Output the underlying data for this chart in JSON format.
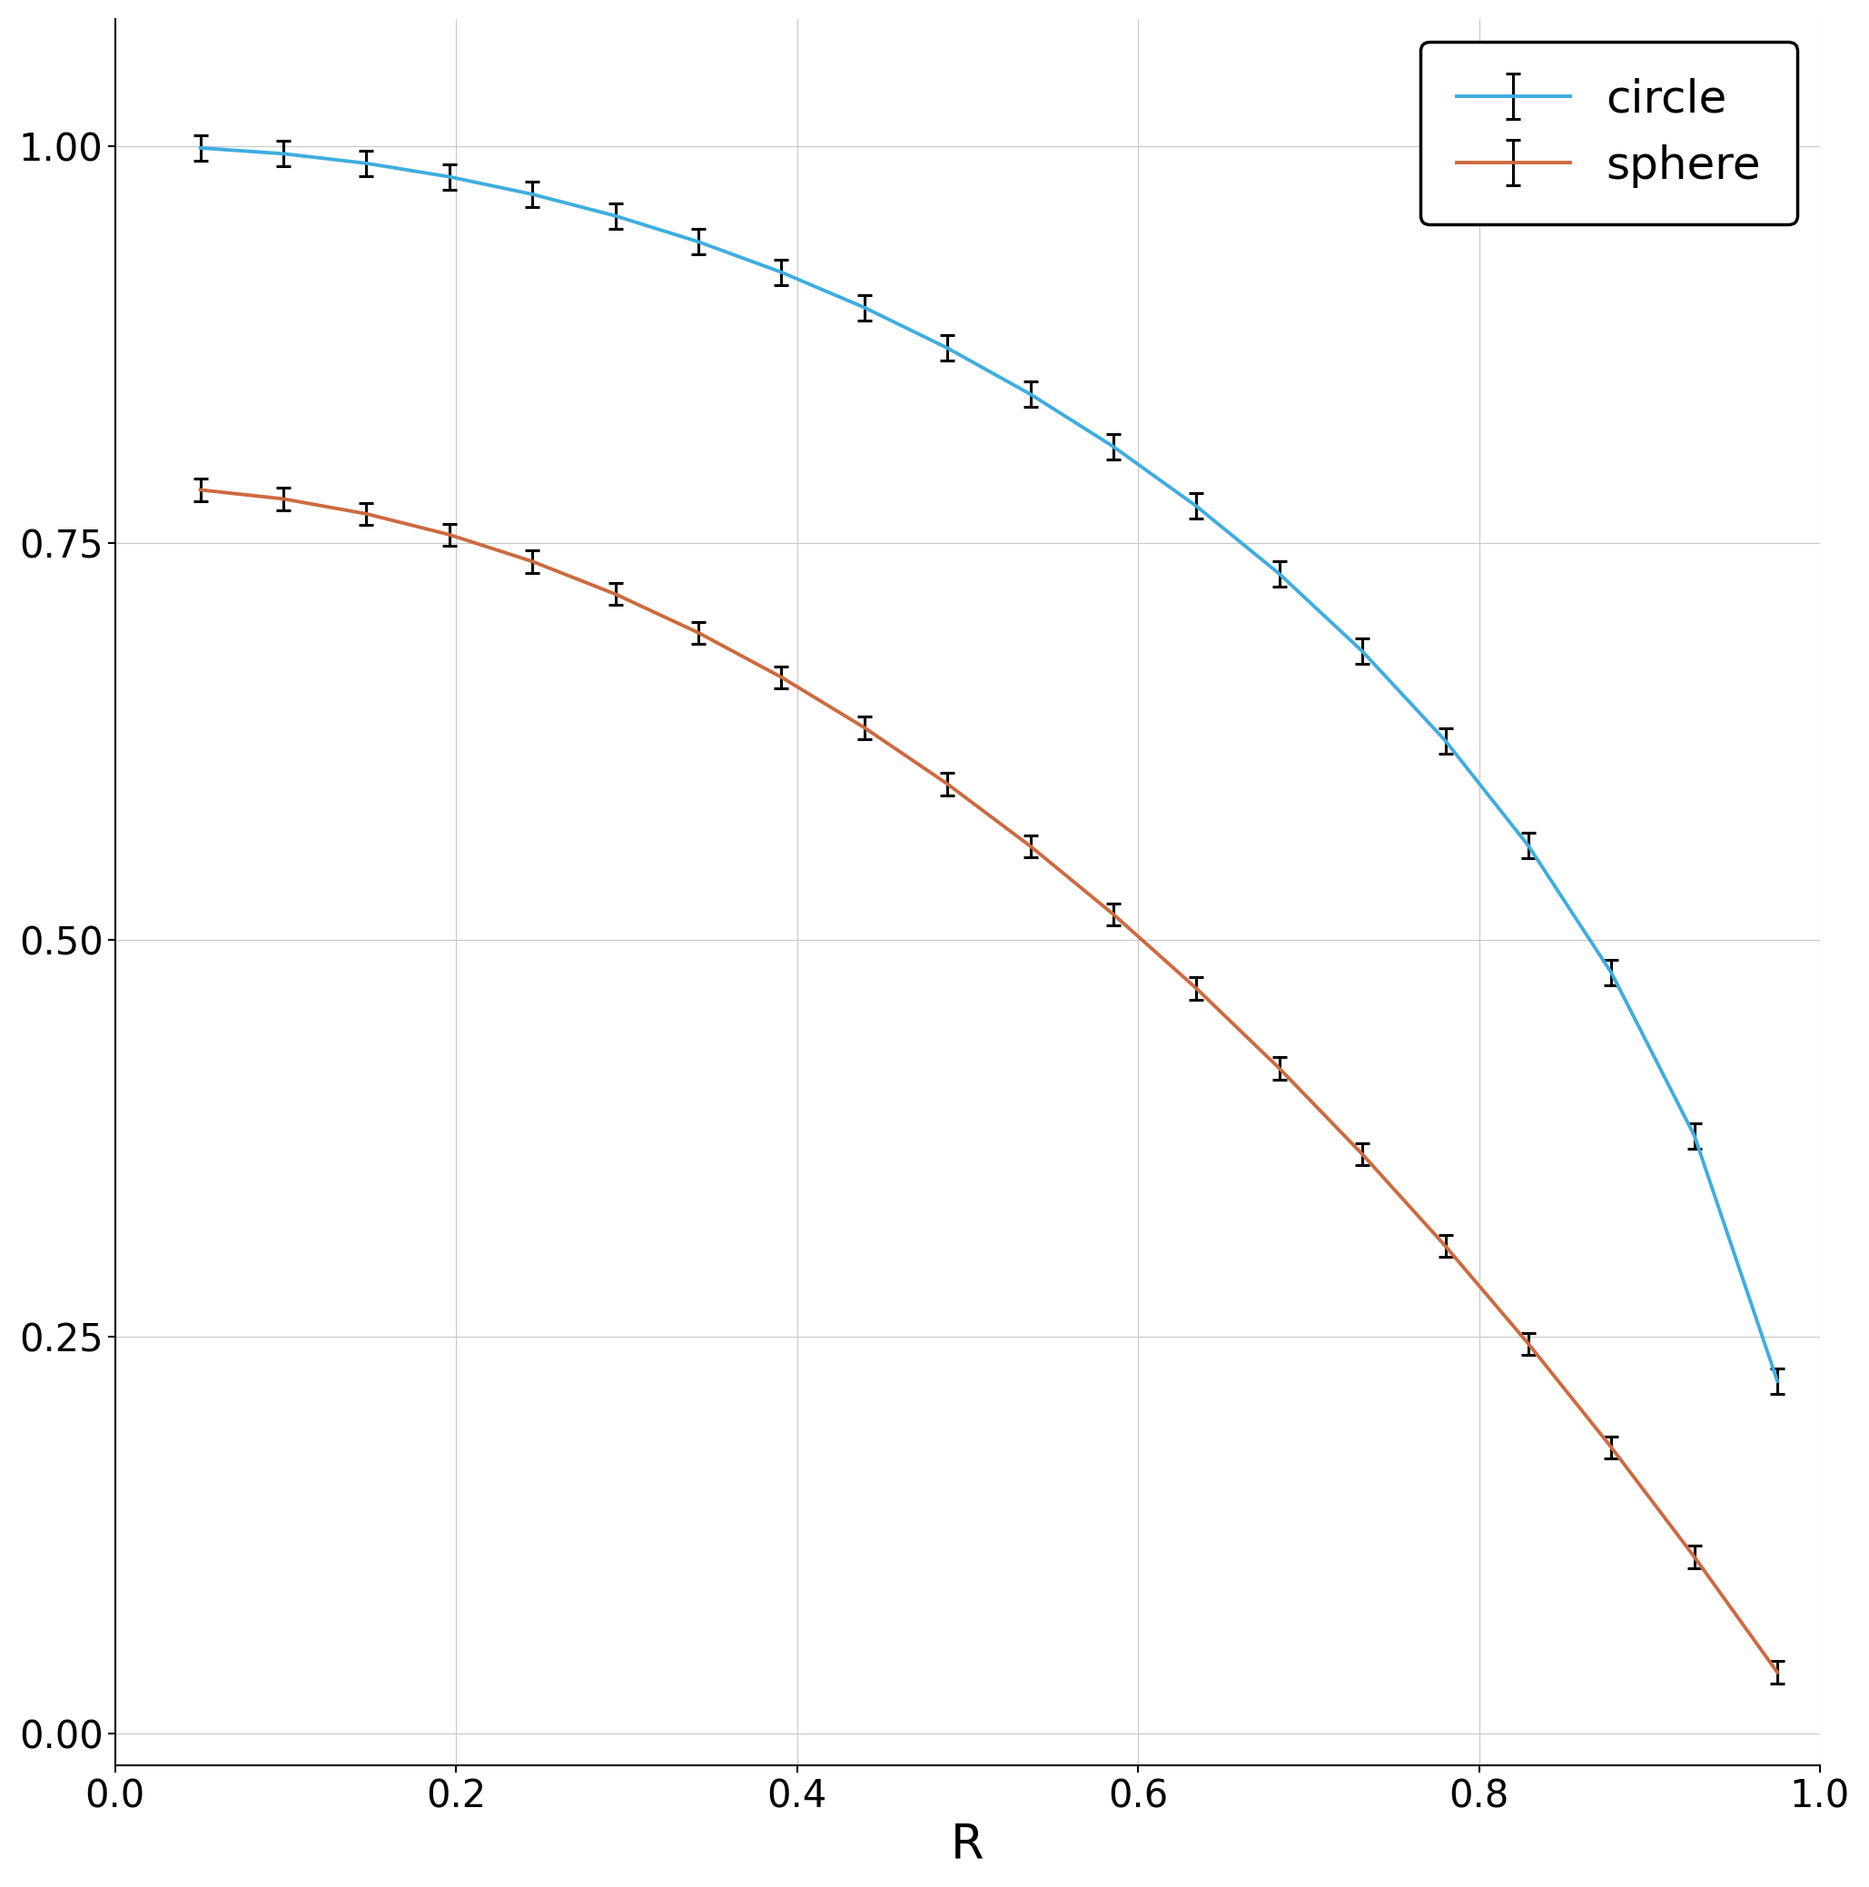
{
  "circle_color": "#3eade0",
  "sphere_color": "#cd6a3f",
  "error_color": "black",
  "xlabel": "R",
  "legend_labels": [
    "circle",
    "sphere"
  ],
  "xlim": [
    0.0,
    1.0
  ],
  "ylim": [
    -0.02,
    1.08
  ],
  "grid_color": "#c8c8c8",
  "background_color": "white",
  "linewidth": 2.8,
  "elinewidth": 2.2,
  "capsize": 6,
  "capthick": 2.2,
  "xlabel_fontsize": 38,
  "tick_fontsize": 30,
  "legend_fontsize": 36,
  "n_points": 20,
  "r_start": 0.05,
  "r_end": 0.975,
  "circle_err_scale": 0.008,
  "sphere_err_scale": 0.007,
  "yticks": [
    0.0,
    0.25,
    0.5,
    0.75,
    1.0
  ],
  "xticks": [
    0.0,
    0.2,
    0.4,
    0.6,
    0.8,
    1.0
  ]
}
